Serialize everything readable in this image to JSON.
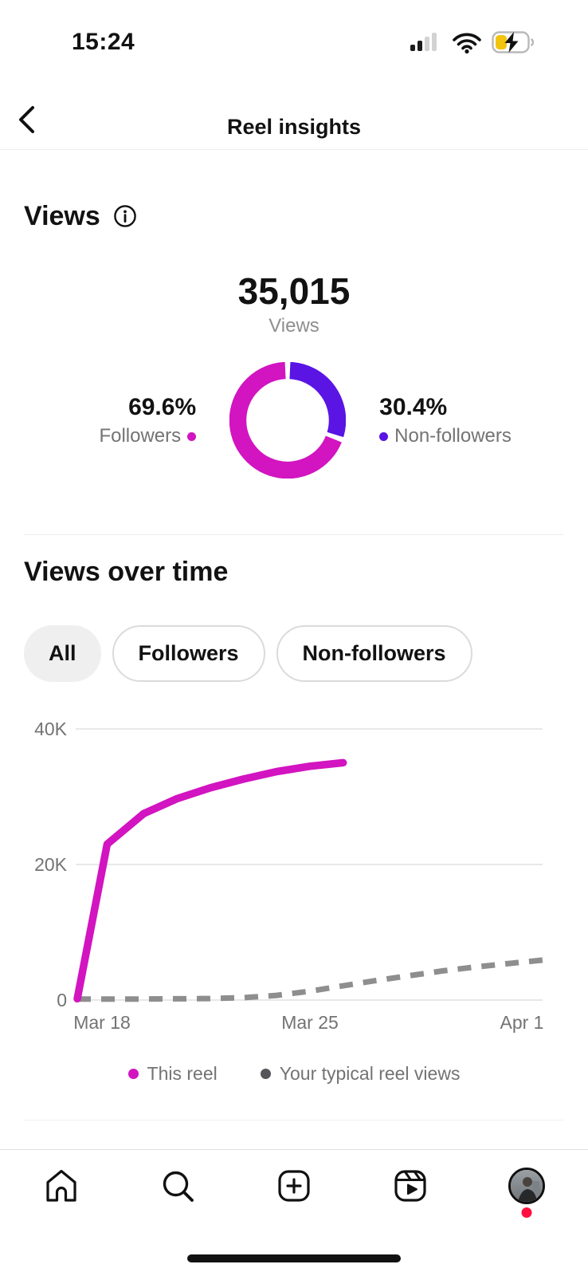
{
  "colors": {
    "accent_magenta": "#d214c1",
    "accent_purple": "#5a14e4",
    "typical_line_gray": "#8e8e8e",
    "legend_dot_dark": "#55555a",
    "battery_yellow": "#f2c40e",
    "notification_red": "#ff0f3f"
  },
  "status_bar": {
    "time": "15:24",
    "icons": [
      "cellular-signal-icon",
      "wifi-icon",
      "battery-charging-icon"
    ]
  },
  "header": {
    "title": "Reel insights",
    "back_icon": "back-chevron-icon"
  },
  "views_summary": {
    "heading": "Views",
    "info_icon": "info-icon",
    "total": "35,015",
    "total_label": "Views",
    "followers": {
      "pct": "69.6%",
      "label": "Followers"
    },
    "non_followers": {
      "pct": "30.4%",
      "label": "Non-followers"
    }
  },
  "views_over_time": {
    "heading": "Views over time",
    "filters": [
      {
        "label": "All",
        "selected": true
      },
      {
        "label": "Followers",
        "selected": false
      },
      {
        "label": "Non-followers",
        "selected": false
      }
    ],
    "legend": [
      {
        "label": "This reel",
        "color": "#d214c1"
      },
      {
        "label": "Your typical reel views",
        "color": "#55555a"
      }
    ]
  },
  "chart_data": [
    {
      "type": "pie",
      "title": "Views by follower type",
      "slices": [
        {
          "label": "Non-followers",
          "value": 30.4,
          "color": "#5a14e4"
        },
        {
          "label": "Followers",
          "value": 69.6,
          "color": "#d214c1"
        }
      ]
    },
    {
      "type": "line",
      "title": "Views over time",
      "ylim": [
        0,
        45000
      ],
      "yticks": [
        "40K",
        "20K",
        "0"
      ],
      "xticks": [
        "Mar 18",
        "Mar 25",
        "Apr 1"
      ],
      "x_range_days": [
        0,
        14
      ],
      "grid": true,
      "legend_position": "bottom",
      "series": [
        {
          "name": "This reel",
          "color": "#d214c1",
          "style": "solid",
          "days": [
            0,
            0.9,
            2,
            3,
            4,
            5,
            6,
            7,
            8
          ],
          "values": [
            200,
            23000,
            27500,
            29700,
            31300,
            32600,
            33700,
            34500,
            35015
          ]
        },
        {
          "name": "Your typical reel views",
          "color": "#8e8e8e",
          "style": "dashed",
          "days": [
            0,
            2,
            4,
            5,
            6,
            7,
            8,
            9,
            10,
            11,
            12,
            13,
            14
          ],
          "values": [
            150,
            150,
            220,
            350,
            700,
            1300,
            2100,
            2900,
            3600,
            4300,
            4900,
            5400,
            5900
          ]
        }
      ]
    }
  ],
  "tab_bar": {
    "items": [
      {
        "icon": "home-icon"
      },
      {
        "icon": "search-icon"
      },
      {
        "icon": "create-icon"
      },
      {
        "icon": "reels-icon"
      },
      {
        "icon": "profile-avatar",
        "badge": true
      }
    ]
  }
}
